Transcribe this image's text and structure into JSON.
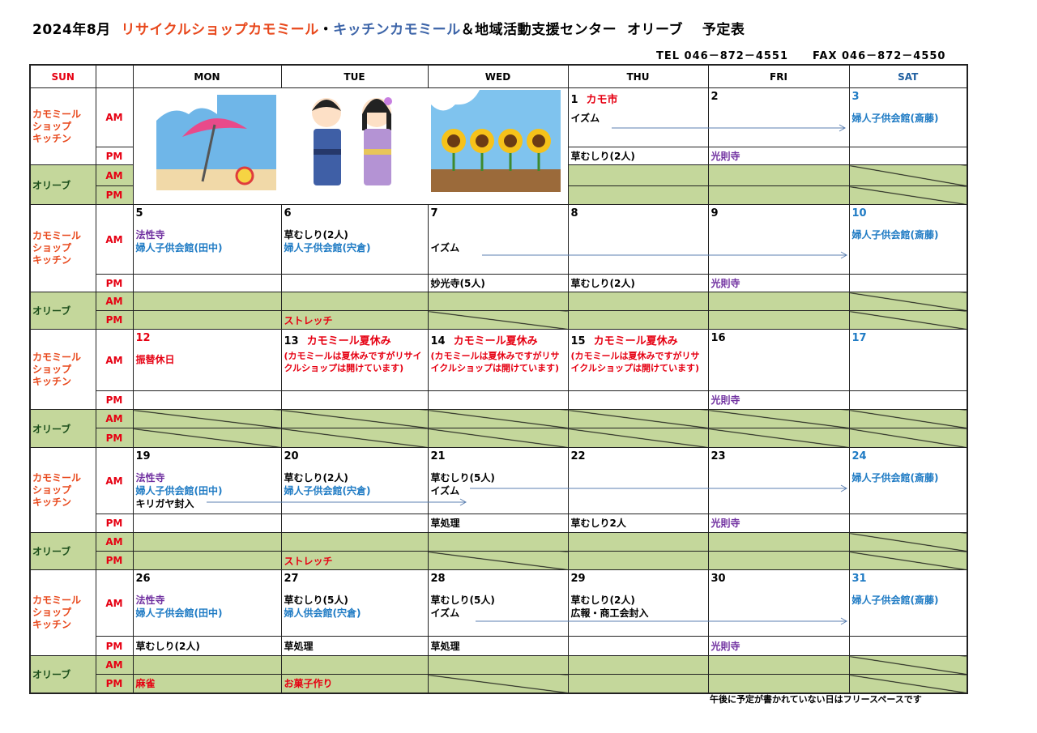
{
  "header": {
    "title_parts": [
      {
        "text": "2024年8月  ",
        "color": "#000000"
      },
      {
        "text": "リサイクルショップカモミール",
        "color": "#e8481c"
      },
      {
        "text": "・",
        "color": "#000000"
      },
      {
        "text": "キッチンカモミール",
        "color": "#3c64a8"
      },
      {
        "text": "＆地域活動支援センター  オリーブ　 予定表",
        "color": "#000000"
      }
    ],
    "tel": "TEL  046－872－4551",
    "fax": "FAX  046－872－4550"
  },
  "columns": [
    {
      "label": "SUN",
      "color": "#e60012"
    },
    {
      "label": "",
      "color": "#000000"
    },
    {
      "label": "MON",
      "color": "#000000"
    },
    {
      "label": "TUE",
      "color": "#000000"
    },
    {
      "label": "WED",
      "color": "#000000"
    },
    {
      "label": "THU",
      "color": "#000000"
    },
    {
      "label": "FRI",
      "color": "#000000"
    },
    {
      "label": "SAT",
      "color": "#1f5fa0"
    }
  ],
  "labels": {
    "kamomile": [
      "カモミール",
      "ショップ",
      "キッチン"
    ],
    "olive": "オリーブ",
    "am": "AM",
    "pm": "PM"
  },
  "illustrations": [
    "beach-umbrella",
    "yukata-children",
    "sunflowers"
  ],
  "weeks": [
    {
      "days": [
        null,
        null,
        null,
        {
          "date": "1",
          "title": "カモ市",
          "am": [
            {
              "t": " イズム",
              "c": "#000000"
            }
          ],
          "pm": [
            {
              "t": "草むしり(2人)",
              "c": "#000000"
            }
          ],
          "oam": null,
          "opm": null,
          "oam_blocked": false,
          "opm_blocked": false
        },
        {
          "date": "2",
          "am": [],
          "pm": [
            {
              "t": "光則寺",
              "c": "#7030a0"
            }
          ],
          "oam_blocked": false,
          "opm_blocked": false
        },
        {
          "date": "3",
          "date_color": "#1f7bc4",
          "am": [
            {
              "t": "婦人子供会館(斎藤)",
              "c": "#1f7bc4"
            }
          ],
          "pm": [],
          "oam_blocked": true,
          "opm_blocked": true
        }
      ]
    },
    {
      "days": [
        {
          "date": "5",
          "am": [
            {
              "t": "法性寺",
              "c": "#7030a0"
            },
            {
              "t": "婦人子供会館(田中)",
              "c": "#1f7bc4"
            }
          ],
          "pm": [],
          "oam_blocked": false,
          "opm_blocked": false
        },
        {
          "date": "6",
          "am": [
            {
              "t": "草むしり(2人)",
              "c": "#000000"
            },
            {
              "t": "婦人子供会館(宍倉)",
              "c": "#1f7bc4"
            }
          ],
          "pm": [],
          "opm": "ストレッチ",
          "oam_blocked": false,
          "opm_blocked": false
        },
        {
          "date": "7",
          "am": [
            {
              "t": "",
              "c": "#000000"
            },
            {
              "t": "イズム",
              "c": "#000000"
            }
          ],
          "pm": [
            {
              "t": "妙光寺(5人)",
              "c": "#000000"
            }
          ],
          "oam_blocked": false,
          "opm_blocked": true
        },
        {
          "date": "8",
          "am": [],
          "pm": [
            {
              "t": "草むしり(2人)",
              "c": "#000000"
            }
          ],
          "oam_blocked": false,
          "opm_blocked": false
        },
        {
          "date": "9",
          "am": [],
          "pm": [
            {
              "t": "光則寺",
              "c": "#7030a0"
            }
          ],
          "oam_blocked": false,
          "opm_blocked": false
        },
        {
          "date": "10",
          "date_color": "#1f7bc4",
          "am": [
            {
              "t": "婦人子供会館(斎藤)",
              "c": "#1f7bc4"
            }
          ],
          "pm": [],
          "oam_blocked": true,
          "opm_blocked": true
        }
      ]
    },
    {
      "days": [
        {
          "date": "12",
          "date_color": "#e60012",
          "am": [
            {
              "t": "振替休日",
              "c": "#e60012"
            }
          ],
          "pm": [],
          "oam_blocked": true,
          "opm_blocked": true
        },
        {
          "date": "13",
          "title": "カモミール夏休み",
          "note": "(カモミールは夏休みですがリサイクルショップは開けています)",
          "am": [],
          "pm": [],
          "oam_blocked": true,
          "opm_blocked": true
        },
        {
          "date": "14",
          "title": "カモミール夏休み",
          "note": "(カモミールは夏休みですがリサイクルショップは開けています)",
          "am": [],
          "pm": [],
          "oam_blocked": true,
          "opm_blocked": true
        },
        {
          "date": "15",
          "title": "カモミール夏休み",
          "note": "(カモミールは夏休みですがリサイクルショップは開けています)",
          "am": [],
          "pm": [],
          "oam_blocked": true,
          "opm_blocked": true
        },
        {
          "date": "16",
          "am": [],
          "pm": [
            {
              "t": "光則寺",
              "c": "#7030a0"
            }
          ],
          "oam_blocked": true,
          "opm_blocked": true
        },
        {
          "date": "17",
          "date_color": "#1f7bc4",
          "am": [],
          "pm": [],
          "oam_blocked": true,
          "opm_blocked": true
        }
      ]
    },
    {
      "days": [
        {
          "date": "19",
          "am": [
            {
              "t": "法性寺",
              "c": "#7030a0"
            },
            {
              "t": "婦人子供会館(田中)",
              "c": "#1f7bc4"
            },
            {
              "t": "キリガヤ封入",
              "c": "#000000"
            }
          ],
          "pm": [],
          "oam_blocked": false,
          "opm_blocked": false
        },
        {
          "date": "20",
          "am": [
            {
              "t": "草むしり(2人)",
              "c": "#000000"
            },
            {
              "t": "婦人子供会館(宍倉)",
              "c": "#1f7bc4"
            }
          ],
          "pm": [],
          "opm": "ストレッチ",
          "oam_blocked": false,
          "opm_blocked": false
        },
        {
          "date": "21",
          "am": [
            {
              "t": "草むしり(5人)",
              "c": "#000000"
            },
            {
              "t": "イズム",
              "c": "#000000"
            }
          ],
          "pm": [
            {
              "t": "草処理",
              "c": "#000000"
            }
          ],
          "oam_blocked": false,
          "opm_blocked": true
        },
        {
          "date": "22",
          "am": [],
          "pm": [
            {
              "t": "草むしり2人",
              "c": "#000000"
            }
          ],
          "oam_blocked": false,
          "opm_blocked": false
        },
        {
          "date": "23",
          "am": [],
          "pm": [
            {
              "t": "光則寺",
              "c": "#7030a0"
            }
          ],
          "oam_blocked": false,
          "opm_blocked": false
        },
        {
          "date": "24",
          "date_color": "#1f7bc4",
          "am": [
            {
              "t": "婦人子供会館(斎藤)",
              "c": "#1f7bc4"
            }
          ],
          "pm": [],
          "oam_blocked": true,
          "opm_blocked": true
        }
      ]
    },
    {
      "days": [
        {
          "date": "26",
          "am": [
            {
              "t": "法性寺",
              "c": "#7030a0"
            },
            {
              "t": "婦人子供会館(田中)",
              "c": "#1f7bc4"
            }
          ],
          "pm": [
            {
              "t": "草むしり(2人)",
              "c": "#000000"
            }
          ],
          "opm": "麻雀",
          "oam_blocked": false,
          "opm_blocked": false
        },
        {
          "date": "27",
          "am": [
            {
              "t": "草むしり(5人)",
              "c": "#000000"
            },
            {
              "t": "婦人供会館(宍倉)",
              "c": "#1f7bc4"
            }
          ],
          "pm": [
            {
              "t": "草処理",
              "c": "#000000"
            }
          ],
          "opm": "お菓子作り",
          "oam_blocked": false,
          "opm_blocked": false
        },
        {
          "date": "28",
          "am": [
            {
              "t": "草むしり(5人)",
              "c": "#000000"
            },
            {
              "t": "イズム",
              "c": "#000000"
            }
          ],
          "pm": [
            {
              "t": "草処理",
              "c": "#000000"
            }
          ],
          "oam_blocked": false,
          "opm_blocked": true
        },
        {
          "date": "29",
          "am": [
            {
              "t": "草むしり(2人)",
              "c": "#000000"
            },
            {
              "t": "広報・商工会封入",
              "c": "#000000"
            }
          ],
          "pm": [],
          "oam_blocked": false,
          "opm_blocked": false
        },
        {
          "date": "30",
          "am": [],
          "pm": [
            {
              "t": "光則寺",
              "c": "#7030a0"
            }
          ],
          "oam_blocked": false,
          "opm_blocked": false
        },
        {
          "date": "31",
          "date_color": "#1f7bc4",
          "am": [
            {
              "t": "婦人子供会館(斎藤)",
              "c": "#1f7bc4"
            }
          ],
          "pm": [],
          "oam_blocked": true,
          "opm_blocked": true
        }
      ]
    }
  ],
  "footer": "午後に予定が書かれていない日はフリースペースです"
}
